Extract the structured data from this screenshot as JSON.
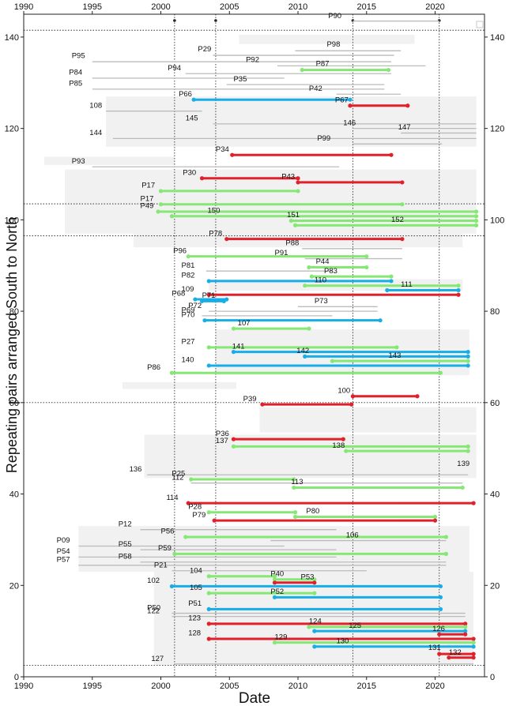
{
  "chart_data": {
    "type": "line",
    "title": "",
    "xlabel": "Date",
    "ylabel": "Repeating pairs arranged South to North",
    "xlim": [
      1990,
      2023.6
    ],
    "ylim": [
      0,
      145
    ],
    "xticks": [
      1990,
      1995,
      2000,
      2005,
      2010,
      2015,
      2020
    ],
    "yticks": [
      0,
      20,
      40,
      60,
      80,
      100,
      120,
      140
    ],
    "grid": false,
    "vlines": [
      2001.0,
      2004.0,
      2014.0,
      2020.3
    ],
    "hlines": [
      2.5,
      60,
      96.5,
      103.5,
      141.5
    ],
    "series_colors": {
      "red": "#e0202a",
      "blue": "#17aee8",
      "green": "#86e874",
      "gray": "#bbbbbb",
      "shade": "#f1f1f1"
    },
    "bands": [
      {
        "x0": 2005.7,
        "x1": 2018.5,
        "y0": 138.5,
        "y1": 140.5
      },
      {
        "x0": 1996.0,
        "x1": 2023.0,
        "y0": 116.0,
        "y1": 127.0
      },
      {
        "x0": 1991.5,
        "x1": 2001.0,
        "y0": 112.0,
        "y1": 113.8
      },
      {
        "x0": 1993.0,
        "x1": 2023.0,
        "y0": 97.0,
        "y1": 111.0
      },
      {
        "x0": 1998.0,
        "x1": 2022.0,
        "y0": 94.0,
        "y1": 98.0
      },
      {
        "x0": 2003.5,
        "x1": 2022.0,
        "y0": 84.5,
        "y1": 87.0
      },
      {
        "x0": 2004.0,
        "x1": 2022.5,
        "y0": 66.0,
        "y1": 76.0
      },
      {
        "x0": 1997.2,
        "x1": 2005.5,
        "y0": 63.0,
        "y1": 64.5
      },
      {
        "x0": 2007.2,
        "x1": 2023.0,
        "y0": 53.5,
        "y1": 59.0
      },
      {
        "x0": 1998.8,
        "x1": 2023.0,
        "y0": 43.5,
        "y1": 53.0
      },
      {
        "x0": 1994.0,
        "x1": 2022.5,
        "y0": 23.0,
        "y1": 33.0
      },
      {
        "x0": 1999.5,
        "x1": 2022.8,
        "y0": 2.5,
        "y1": 23.0
      }
    ],
    "pairs": [
      {
        "label": "P90",
        "x0": 2014.0,
        "x1": 2020.3,
        "y": 143.5,
        "color": "gray",
        "lx": 2012.2,
        "ly": 143.8
      },
      {
        "label": "P98",
        "x0": 2009.8,
        "x1": 2017.5,
        "y": 137.0,
        "color": "gray",
        "lx": 2012.1,
        "ly": 137.6
      },
      {
        "label": "P29",
        "x0": 2003.8,
        "x1": 2017.0,
        "y": 136.0,
        "color": "gray",
        "lx": 2002.7,
        "ly": 136.5
      },
      {
        "label": "P95",
        "x0": 1995.0,
        "x1": 2016.8,
        "y": 134.6,
        "color": "gray",
        "lx": 1993.5,
        "ly": 135.1
      },
      {
        "label": "P92",
        "x0": 2008.5,
        "x1": 2019.3,
        "y": 133.7,
        "color": "gray",
        "lx": 2006.2,
        "ly": 134.2
      },
      {
        "label": "P87",
        "x0": 2010.3,
        "x1": 2016.6,
        "y": 132.8,
        "color": "green",
        "lx": 2011.3,
        "ly": 133.3
      },
      {
        "label": "P94",
        "x0": 2001.8,
        "x1": 2016.8,
        "y": 132.0,
        "color": "gray",
        "lx": 2000.5,
        "ly": 132.4
      },
      {
        "label": "P84",
        "x0": 1995.0,
        "x1": 2009.0,
        "y": 131.0,
        "color": "gray",
        "lx": 1993.3,
        "ly": 131.4
      },
      {
        "label": "P35",
        "x0": 2004.8,
        "x1": 2016.3,
        "y": 129.6,
        "color": "gray",
        "lx": 2005.3,
        "ly": 130.0
      },
      {
        "label": "P85",
        "x0": 1995.0,
        "x1": 2016.3,
        "y": 128.6,
        "color": "gray",
        "lx": 1993.3,
        "ly": 129.0
      },
      {
        "label": "P42",
        "x0": 2012.8,
        "x1": 2017.5,
        "y": 127.5,
        "color": "gray",
        "lx": 2010.8,
        "ly": 127.9
      },
      {
        "label": "P66",
        "x0": 2002.4,
        "x1": 2013.8,
        "y": 126.3,
        "color": "blue",
        "lx": 2001.3,
        "ly": 126.7
      },
      {
        "label": "P67",
        "x0": 2013.8,
        "x1": 2018.0,
        "y": 125.0,
        "color": "red",
        "lx": 2012.7,
        "ly": 125.4
      },
      {
        "label": "108",
        "x0": 1996.0,
        "x1": 2003.0,
        "y": 123.8,
        "color": "gray",
        "lx": 1994.8,
        "ly": 124.2
      },
      {
        "label": "145",
        "x0": 2003.8,
        "x1": 2023.0,
        "y": 121.0,
        "color": "gray",
        "lx": 2001.8,
        "ly": 121.4
      },
      {
        "label": "146",
        "x0": 2014.0,
        "x1": 2023.0,
        "y": 120.0,
        "color": "gray",
        "lx": 2013.3,
        "ly": 120.4
      },
      {
        "label": "147",
        "x0": 2017.5,
        "x1": 2023.0,
        "y": 119.0,
        "color": "gray",
        "lx": 2017.3,
        "ly": 119.4
      },
      {
        "label": "144",
        "x0": 1996.5,
        "x1": 2023.0,
        "y": 117.8,
        "color": "gray",
        "lx": 1994.8,
        "ly": 118.2
      },
      {
        "label": "P99",
        "x0": 2014.0,
        "x1": 2020.5,
        "y": 116.6,
        "color": "gray",
        "lx": 2011.4,
        "ly": 117.0
      },
      {
        "label": "P34",
        "x0": 2005.2,
        "x1": 2016.8,
        "y": 114.2,
        "color": "red",
        "lx": 2004.0,
        "ly": 114.6
      },
      {
        "label": "P93",
        "x0": 1995.0,
        "x1": 2013.0,
        "y": 111.6,
        "color": "gray",
        "lx": 1993.5,
        "ly": 112.0
      },
      {
        "label": "P30",
        "x0": 2003.0,
        "x1": 2010.0,
        "y": 109.1,
        "color": "red",
        "lx": 2001.6,
        "ly": 109.5
      },
      {
        "label": "P43",
        "x0": 2010.0,
        "x1": 2017.6,
        "y": 108.2,
        "color": "red",
        "lx": 2008.8,
        "ly": 108.6
      },
      {
        "label": "P17",
        "x0": 2000.0,
        "x1": 2010.0,
        "y": 106.3,
        "color": "green",
        "lx": 1998.6,
        "ly": 106.7
      },
      {
        "label": "P17",
        "x0": 2000.0,
        "x1": 2017.6,
        "y": 103.4,
        "color": "green",
        "lx": 1998.5,
        "ly": 103.8
      },
      {
        "label": "P49",
        "x0": 1999.8,
        "x1": 2023.0,
        "y": 101.8,
        "color": "green",
        "lx": 1998.5,
        "ly": 102.2
      },
      {
        "label": "150",
        "x0": 2000.8,
        "x1": 2023.0,
        "y": 100.8,
        "color": "green",
        "lx": 2003.4,
        "ly": 101.2
      },
      {
        "label": "151",
        "x0": 2009.5,
        "x1": 2023.0,
        "y": 99.8,
        "color": "green",
        "lx": 2009.2,
        "ly": 100.2
      },
      {
        "label": "152",
        "x0": 2009.8,
        "x1": 2023.0,
        "y": 98.8,
        "color": "green",
        "lx": 2016.8,
        "ly": 99.2
      },
      {
        "label": "P78",
        "x0": 2004.8,
        "x1": 2017.6,
        "y": 95.8,
        "color": "red",
        "lx": 2003.5,
        "ly": 96.2
      },
      {
        "label": "P88",
        "x0": 2010.3,
        "x1": 2017.6,
        "y": 93.7,
        "color": "gray",
        "lx": 2009.1,
        "ly": 94.1
      },
      {
        "label": "P96",
        "x0": 2002.0,
        "x1": 2015.0,
        "y": 92.0,
        "color": "green",
        "lx": 2000.9,
        "ly": 92.4
      },
      {
        "label": "P91",
        "x0": 2010.5,
        "x1": 2017.6,
        "y": 91.5,
        "color": "gray",
        "lx": 2008.3,
        "ly": 91.9
      },
      {
        "label": "P44",
        "x0": 2010.8,
        "x1": 2015.0,
        "y": 89.6,
        "color": "green",
        "lx": 2011.3,
        "ly": 90.0
      },
      {
        "label": "P81",
        "x0": 2003.3,
        "x1": 2012.5,
        "y": 88.8,
        "color": "gray",
        "lx": 2001.5,
        "ly": 89.2
      },
      {
        "label": "P83",
        "x0": 2011.0,
        "x1": 2016.8,
        "y": 87.6,
        "color": "green",
        "lx": 2011.9,
        "ly": 88.0
      },
      {
        "label": "P82",
        "x0": 2003.5,
        "x1": 2016.8,
        "y": 86.6,
        "color": "blue",
        "lx": 2001.5,
        "ly": 87.0
      },
      {
        "label": "110",
        "x0": 2010.5,
        "x1": 2021.7,
        "y": 85.6,
        "color": "green",
        "lx": 2011.2,
        "ly": 86.0
      },
      {
        "label": "111",
        "x0": 2016.5,
        "x1": 2021.7,
        "y": 84.6,
        "color": "blue",
        "lx": 2017.5,
        "ly": 85.0
      },
      {
        "label": "109",
        "x0": 2003.5,
        "x1": 2021.7,
        "y": 83.6,
        "color": "red",
        "lx": 2001.5,
        "ly": 84.0
      },
      {
        "label": "P68",
        "x0": 2002.5,
        "x1": 2004.8,
        "y": 82.6,
        "color": "blue",
        "lx": 2000.8,
        "ly": 83.0
      },
      {
        "label": "P71",
        "x0": 2003.0,
        "x1": 2004.6,
        "y": 82.2,
        "color": "blue",
        "lx": 2003.0,
        "ly": 82.6
      },
      {
        "label": "P73",
        "x0": 2010.0,
        "x1": 2015.8,
        "y": 81.0,
        "color": "gray",
        "lx": 2011.2,
        "ly": 81.4
      },
      {
        "label": "P72",
        "x0": 2003.5,
        "x1": 2015.8,
        "y": 80.0,
        "color": "gray",
        "lx": 2002.0,
        "ly": 80.4
      },
      {
        "label": "P69",
        "x0": 2003.0,
        "x1": 2012.5,
        "y": 79.0,
        "color": "gray",
        "lx": 2001.5,
        "ly": 79.4
      },
      {
        "label": "P70",
        "x0": 2003.2,
        "x1": 2016.0,
        "y": 78.0,
        "color": "blue",
        "lx": 2001.5,
        "ly": 78.4
      },
      {
        "label": "107",
        "x0": 2005.3,
        "x1": 2010.8,
        "y": 76.2,
        "color": "green",
        "lx": 2005.6,
        "ly": 76.6
      },
      {
        "label": "P27",
        "x0": 2003.5,
        "x1": 2017.2,
        "y": 72.1,
        "color": "green",
        "lx": 2001.5,
        "ly": 72.5
      },
      {
        "label": "141",
        "x0": 2005.3,
        "x1": 2022.4,
        "y": 71.1,
        "color": "blue",
        "lx": 2005.2,
        "ly": 71.5
      },
      {
        "label": "142",
        "x0": 2010.5,
        "x1": 2022.4,
        "y": 70.1,
        "color": "blue",
        "lx": 2009.9,
        "ly": 70.5
      },
      {
        "label": "143",
        "x0": 2012.5,
        "x1": 2022.4,
        "y": 69.1,
        "color": "green",
        "lx": 2016.6,
        "ly": 69.5
      },
      {
        "label": "140",
        "x0": 2003.5,
        "x1": 2022.4,
        "y": 68.1,
        "color": "blue",
        "lx": 2001.5,
        "ly": 68.5
      },
      {
        "label": "P86",
        "x0": 2000.8,
        "x1": 2020.4,
        "y": 66.5,
        "color": "green",
        "lx": 1999.0,
        "ly": 66.9
      },
      {
        "label": "100",
        "x0": 2014.0,
        "x1": 2018.7,
        "y": 61.4,
        "color": "red",
        "lx": 2012.9,
        "ly": 61.8
      },
      {
        "label": "P39",
        "x0": 2007.4,
        "x1": 2013.9,
        "y": 59.6,
        "color": "red",
        "lx": 2006.0,
        "ly": 60.0
      },
      {
        "label": "P36",
        "x0": 2005.3,
        "x1": 2013.3,
        "y": 52.0,
        "color": "red",
        "lx": 2004.0,
        "ly": 52.4
      },
      {
        "label": "137",
        "x0": 2005.3,
        "x1": 2022.4,
        "y": 50.4,
        "color": "green",
        "lx": 2004.0,
        "ly": 50.8
      },
      {
        "label": "138",
        "x0": 2013.5,
        "x1": 2022.4,
        "y": 49.4,
        "color": "green",
        "lx": 2012.5,
        "ly": 49.8
      },
      {
        "label": "139",
        "x0": 2023.0,
        "x1": 2023.0,
        "y": 45.4,
        "color": "gray",
        "lx": 2021.6,
        "ly": 45.8
      },
      {
        "label": "136",
        "x0": 1999.0,
        "x1": 2022.4,
        "y": 44.2,
        "color": "gray",
        "lx": 1997.7,
        "ly": 44.6
      },
      {
        "label": "P25",
        "x0": 2002.2,
        "x1": 2009.7,
        "y": 43.2,
        "color": "green",
        "lx": 2000.8,
        "ly": 43.6
      },
      {
        "label": "112",
        "x0": 2002.2,
        "x1": 2022.0,
        "y": 42.4,
        "color": "gray",
        "lx": 2000.8,
        "ly": 42.8
      },
      {
        "label": "113",
        "x0": 2009.7,
        "x1": 2022.0,
        "y": 41.4,
        "color": "green",
        "lx": 2009.5,
        "ly": 41.8
      },
      {
        "label": "114",
        "x0": 2002.0,
        "x1": 2022.8,
        "y": 38.0,
        "color": "red",
        "lx": 2000.4,
        "ly": 38.4
      },
      {
        "label": "P28",
        "x0": 2003.5,
        "x1": 2009.8,
        "y": 36.0,
        "color": "green",
        "lx": 2002.0,
        "ly": 36.4
      },
      {
        "label": "P80",
        "x0": 2009.8,
        "x1": 2020.0,
        "y": 35.0,
        "color": "green",
        "lx": 2010.6,
        "ly": 35.4
      },
      {
        "label": "P79",
        "x0": 2003.9,
        "x1": 2020.0,
        "y": 34.2,
        "color": "red",
        "lx": 2002.3,
        "ly": 34.6
      },
      {
        "label": "P12",
        "x0": 1998.5,
        "x1": 2012.8,
        "y": 32.2,
        "color": "gray",
        "lx": 1996.9,
        "ly": 32.6
      },
      {
        "label": "P56",
        "x0": 2001.8,
        "x1": 2020.8,
        "y": 30.6,
        "color": "green",
        "lx": 2000.0,
        "ly": 31.0
      },
      {
        "label": "106",
        "x0": 2008.0,
        "x1": 2020.8,
        "y": 29.8,
        "color": "gray",
        "lx": 2013.5,
        "ly": 30.2
      },
      {
        "label": "P09",
        "x0": 1994.0,
        "x1": 2009.0,
        "y": 28.6,
        "color": "gray",
        "lx": 1992.4,
        "ly": 29.0
      },
      {
        "label": "P55",
        "x0": 1998.5,
        "x1": 2012.8,
        "y": 27.8,
        "color": "gray",
        "lx": 1996.9,
        "ly": 28.2
      },
      {
        "label": "P59",
        "x0": 2001.0,
        "x1": 2020.8,
        "y": 26.9,
        "color": "green",
        "lx": 1999.8,
        "ly": 27.3
      },
      {
        "label": "P54",
        "x0": 1994.0,
        "x1": 2012.8,
        "y": 26.2,
        "color": "gray",
        "lx": 1992.4,
        "ly": 26.6
      },
      {
        "label": "P58",
        "x0": 1998.5,
        "x1": 2020.8,
        "y": 25.1,
        "color": "gray",
        "lx": 1996.9,
        "ly": 25.5
      },
      {
        "label": "P57",
        "x0": 1994.0,
        "x1": 2020.8,
        "y": 24.4,
        "color": "gray",
        "lx": 1992.4,
        "ly": 24.8
      },
      {
        "label": "P21",
        "x0": 2000.8,
        "x1": 2015.0,
        "y": 23.2,
        "color": "gray",
        "lx": 1999.5,
        "ly": 23.6
      },
      {
        "label": "104",
        "x0": 2003.5,
        "x1": 2008.3,
        "y": 22.0,
        "color": "green",
        "lx": 2002.1,
        "ly": 22.4
      },
      {
        "label": "P40",
        "x0": 2008.3,
        "x1": 2011.2,
        "y": 21.3,
        "color": "green",
        "lx": 2008.0,
        "ly": 21.7
      },
      {
        "label": "P53",
        "x0": 2008.3,
        "x1": 2011.2,
        "y": 20.6,
        "color": "red",
        "lx": 2010.2,
        "ly": 21.0
      },
      {
        "label": "102",
        "x0": 2000.8,
        "x1": 2020.4,
        "y": 19.8,
        "color": "blue",
        "lx": 1999.0,
        "ly": 20.2
      },
      {
        "label": "105",
        "x0": 2003.5,
        "x1": 2011.2,
        "y": 18.3,
        "color": "green",
        "lx": 2002.1,
        "ly": 18.7
      },
      {
        "label": "P52",
        "x0": 2008.3,
        "x1": 2020.4,
        "y": 17.4,
        "color": "blue",
        "lx": 2008.0,
        "ly": 17.8
      },
      {
        "label": "P51",
        "x0": 2003.5,
        "x1": 2020.4,
        "y": 14.8,
        "color": "blue",
        "lx": 2002.0,
        "ly": 15.2
      },
      {
        "label": "P50",
        "x0": 2000.8,
        "x1": 2022.2,
        "y": 13.9,
        "color": "gray",
        "lx": 1999.0,
        "ly": 14.3
      },
      {
        "label": "122",
        "x0": 2000.8,
        "x1": 2022.2,
        "y": 13.2,
        "color": "gray",
        "lx": 1999.0,
        "ly": 13.6
      },
      {
        "label": "123",
        "x0": 2003.5,
        "x1": 2022.2,
        "y": 11.6,
        "color": "red",
        "lx": 2002.0,
        "ly": 12.0
      },
      {
        "label": "124",
        "x0": 2010.8,
        "x1": 2022.2,
        "y": 10.9,
        "color": "green",
        "lx": 2010.8,
        "ly": 11.3
      },
      {
        "label": "125",
        "x0": 2011.2,
        "x1": 2022.2,
        "y": 10.0,
        "color": "blue",
        "lx": 2013.7,
        "ly": 10.4
      },
      {
        "label": "126",
        "x0": 2020.3,
        "x1": 2022.2,
        "y": 9.3,
        "color": "red",
        "lx": 2019.8,
        "ly": 9.7
      },
      {
        "label": "128",
        "x0": 2003.5,
        "x1": 2022.8,
        "y": 8.3,
        "color": "red",
        "lx": 2002.0,
        "ly": 8.7
      },
      {
        "label": "129",
        "x0": 2008.3,
        "x1": 2022.8,
        "y": 7.5,
        "color": "green",
        "lx": 2008.3,
        "ly": 7.9
      },
      {
        "label": "130",
        "x0": 2011.2,
        "x1": 2022.8,
        "y": 6.6,
        "color": "blue",
        "lx": 2012.8,
        "ly": 7.0
      },
      {
        "label": "131",
        "x0": 2020.3,
        "x1": 2022.8,
        "y": 5.0,
        "color": "red",
        "lx": 2019.5,
        "ly": 5.5
      },
      {
        "label": "132",
        "x0": 2021.0,
        "x1": 2022.8,
        "y": 4.2,
        "color": "red",
        "lx": 2021.0,
        "ly": 4.5
      },
      {
        "label": "127",
        "x0": 2001.0,
        "x1": 2022.8,
        "y": 2.8,
        "color": "gray",
        "lx": 1999.3,
        "ly": 3.1
      }
    ]
  }
}
